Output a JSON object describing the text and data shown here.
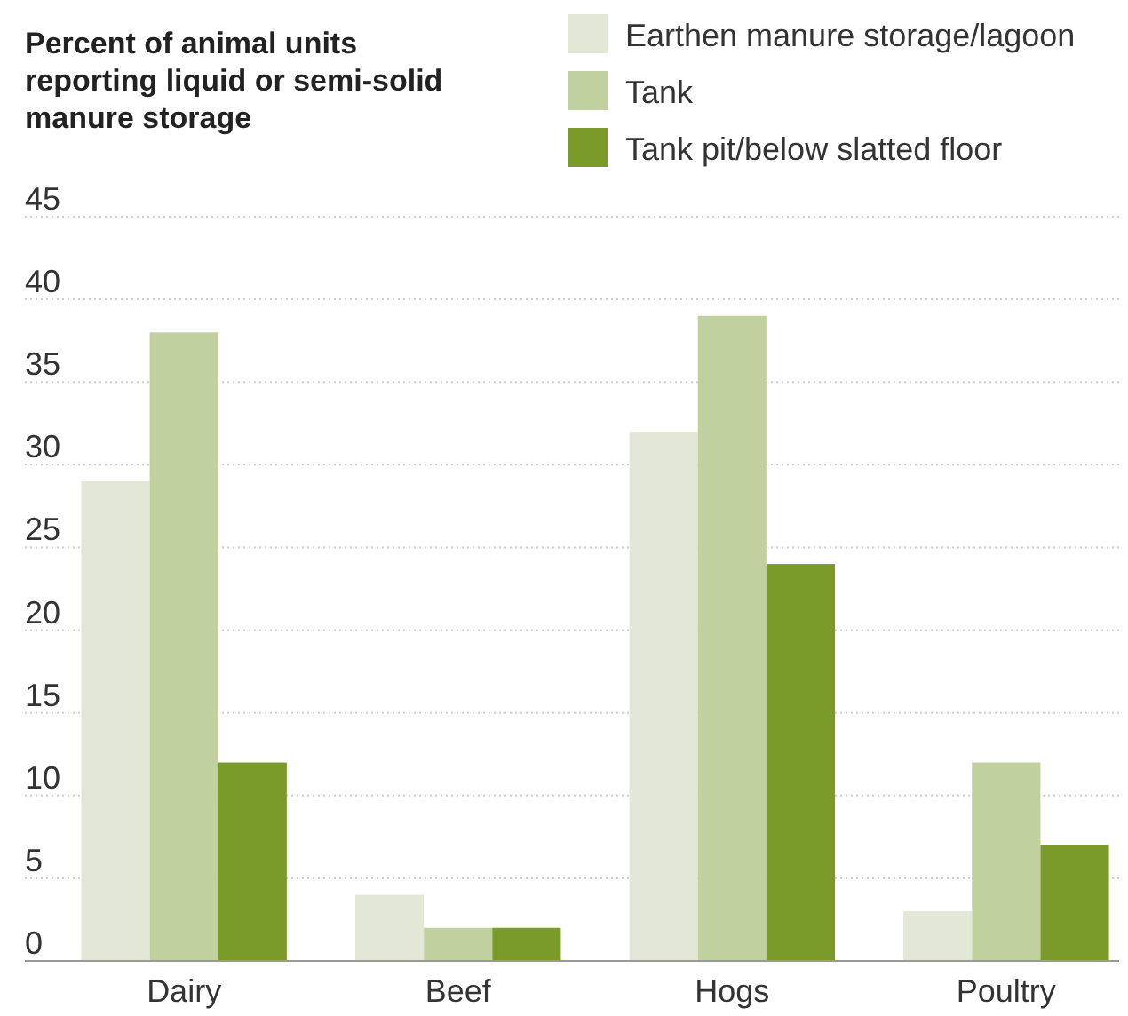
{
  "chart_data": {
    "type": "bar",
    "ylabel": "Percent of animal units reporting liquid or semi-solid manure storage",
    "categories": [
      "Dairy",
      "Beef",
      "Hogs",
      "Poultry"
    ],
    "series": [
      {
        "name": "Earthen manure storage/lagoon",
        "color": "#e3e8d6",
        "values": [
          29,
          4,
          32,
          3
        ]
      },
      {
        "name": "Tank",
        "color": "#c0d19f",
        "values": [
          38,
          2,
          39,
          12
        ]
      },
      {
        "name": "Tank pit/below slatted floor",
        "color": "#7a9a2a",
        "values": [
          12,
          2,
          24,
          7
        ]
      }
    ],
    "ylim": [
      0,
      45
    ],
    "yticks": [
      0,
      5,
      10,
      15,
      20,
      25,
      30,
      35,
      40,
      45
    ],
    "grid": "y",
    "legend": "top right"
  }
}
